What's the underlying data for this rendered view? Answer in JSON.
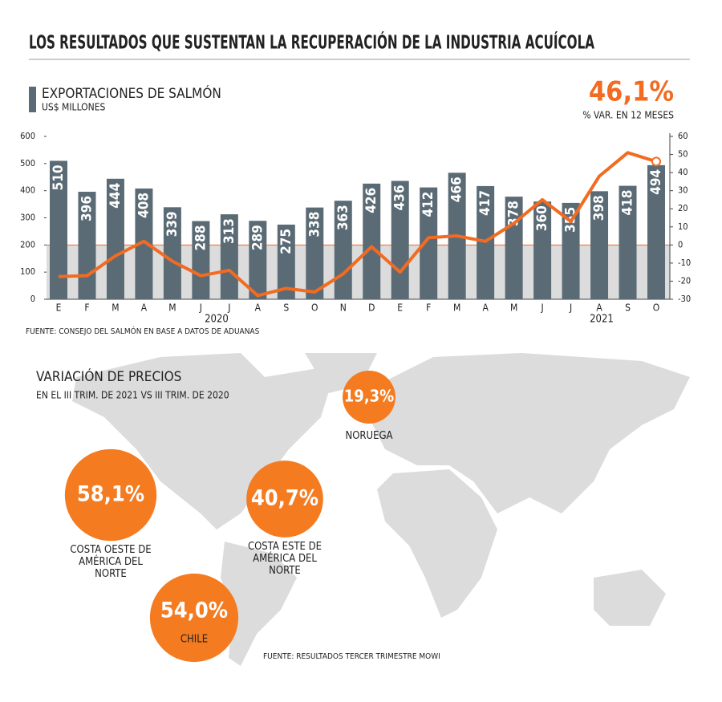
{
  "title": "LOS RESULTADOS QUE SUSTENTAN LA RECUPERACIÓN DE LA INDUSTRIA ACUÍCOLA",
  "chart_data": {
    "type": "bar_line",
    "ylabel": "US$ MILLONES",
    "categories": [
      "E",
      "F",
      "M",
      "A",
      "M",
      "J",
      "J",
      "A",
      "S",
      "O",
      "N",
      "D",
      "E",
      "F",
      "M",
      "A",
      "M",
      "J",
      "J",
      "A",
      "S",
      "O"
    ],
    "years": [
      "2020",
      "2021"
    ],
    "series": [
      {
        "name": "EXPORTACIONES DE SALMÓN",
        "color": "#5b6b75",
        "axis": "y",
        "values": [
          510,
          396,
          444,
          408,
          339,
          288,
          313,
          289,
          275,
          338,
          363,
          426,
          436,
          412,
          466,
          417,
          378,
          360,
          355,
          398,
          418,
          494
        ]
      },
      {
        "name": "% VAR. EN 12 MESES",
        "color": "#f26b21",
        "axis": "y2",
        "values": [
          -17.5,
          -17,
          -6,
          2,
          -9,
          -17,
          -14,
          -28,
          -24,
          -26,
          -16,
          -1,
          -15,
          4,
          5,
          2,
          12,
          25,
          13,
          38,
          51,
          46.1
        ],
        "value_labels": [
          null,
          null,
          null,
          null,
          null,
          null,
          null,
          null,
          null,
          null,
          null,
          null,
          null,
          null,
          null,
          null,
          null,
          null,
          null,
          null,
          null,
          "46,1%"
        ]
      }
    ],
    "ylim": [
      0,
      600
    ],
    "yticks": [
      0,
      100,
      200,
      300,
      400,
      500,
      600
    ],
    "y2lim": [
      -30,
      60
    ],
    "y2ticks": [
      -30,
      -20,
      -10,
      0,
      10,
      20,
      30,
      40,
      50,
      60
    ],
    "source": "FUENTE: CONSEJO DEL SALMÓN EN BASE A DATOS DE ADUANAS"
  },
  "prices": {
    "title": "VARIACIÓN DE PRECIOS",
    "subtitle": "EN EL III TRIM. DE 2021 VS III TRIM. DE 2020",
    "items": [
      {
        "label": "NORUEGA",
        "value": 19.3,
        "value_label": "19,3%"
      },
      {
        "label": "COSTA OESTE DE AMÉRICA DEL NORTE",
        "value": 58.1,
        "value_label": "58,1%"
      },
      {
        "label": "COSTA ESTE DE AMÉRICA DEL NORTE",
        "value": 40.7,
        "value_label": "40,7%"
      },
      {
        "label": "CHILE",
        "value": 54.0,
        "value_label": "54,0%"
      }
    ],
    "source": "FUENTE: RESULTADOS TERCER TRIMESTRE MOWI"
  }
}
